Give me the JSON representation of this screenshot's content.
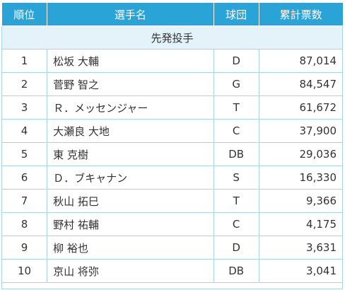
{
  "headers": {
    "rank": "順位",
    "name": "選手名",
    "team": "球団",
    "votes": "累計票数"
  },
  "section_title": "先発投手",
  "rows": [
    {
      "rank": "1",
      "name": "松坂 大輔",
      "team": "D",
      "votes": "87,014"
    },
    {
      "rank": "2",
      "name": "菅野 智之",
      "team": "G",
      "votes": "84,547"
    },
    {
      "rank": "3",
      "name": "Ｒ．メッセンジャー",
      "team": "T",
      "votes": "61,672"
    },
    {
      "rank": "4",
      "name": "大瀬良 大地",
      "team": "C",
      "votes": "37,900"
    },
    {
      "rank": "5",
      "name": "東 克樹",
      "team": "DB",
      "votes": "29,036"
    },
    {
      "rank": "6",
      "name": "Ｄ．ブキャナン",
      "team": "S",
      "votes": "16,330"
    },
    {
      "rank": "7",
      "name": "秋山 拓巳",
      "team": "T",
      "votes": "9,366"
    },
    {
      "rank": "8",
      "name": "野村 祐輔",
      "team": "C",
      "votes": "4,175"
    },
    {
      "rank": "9",
      "name": "柳 裕也",
      "team": "D",
      "votes": "3,631"
    },
    {
      "rank": "10",
      "name": "京山 将弥",
      "team": "DB",
      "votes": "3,041"
    }
  ],
  "colors": {
    "header_bg": "#2aa3d6",
    "section_bg": "#e4f3fa",
    "border": "#a6d5ea"
  }
}
